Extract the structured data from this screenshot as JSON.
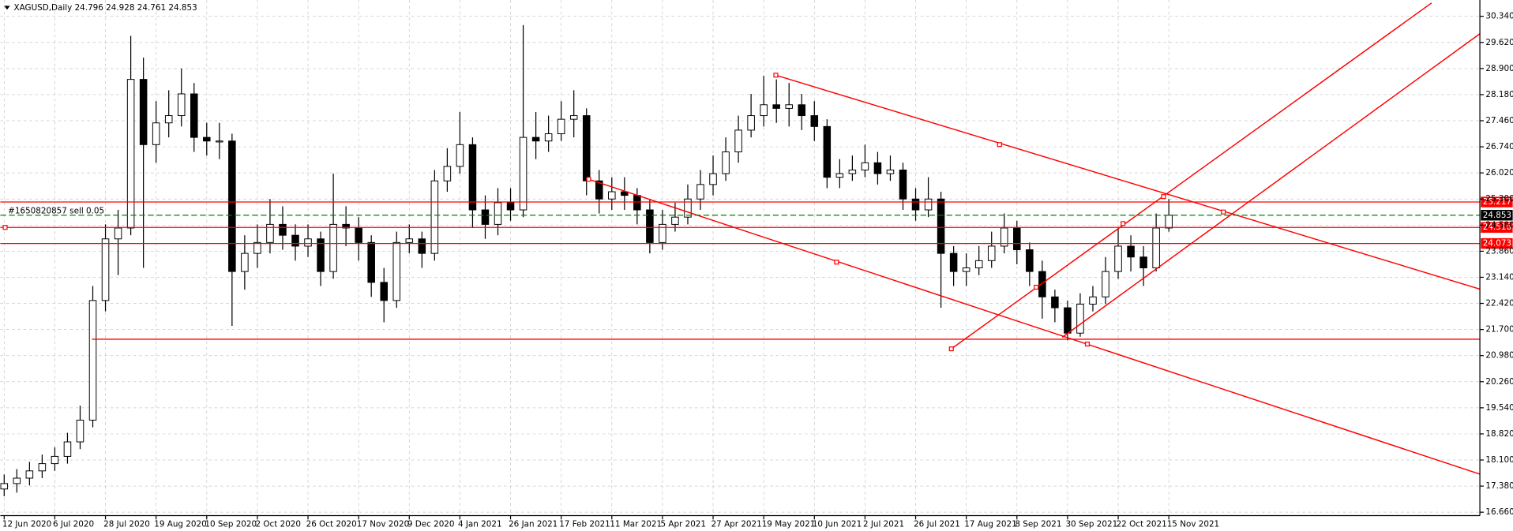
{
  "chart_data": {
    "type": "candlestick",
    "title": "XAGUSD,Daily  24.796 24.928 24.761 24.853",
    "order_label": "#1650820857 sell 0.05",
    "categories": [
      "12 Jun 2020",
      null,
      null,
      null,
      "6 Jul 2020",
      null,
      null,
      null,
      "28 Jul 2020",
      null,
      null,
      null,
      "19 Aug 2020",
      null,
      null,
      null,
      "10 Sep 2020",
      null,
      null,
      null,
      "2 Oct 2020",
      null,
      null,
      null,
      "26 Oct 2020",
      null,
      null,
      null,
      "17 Nov 2020",
      null,
      null,
      null,
      "9 Dec 2020",
      null,
      null,
      null,
      "4 Jan 2021",
      null,
      null,
      null,
      "26 Jan 2021",
      null,
      null,
      null,
      "17 Feb 2021",
      null,
      null,
      null,
      "11 Mar 2021",
      null,
      null,
      null,
      "5 Apr 2021",
      null,
      null,
      null,
      "27 Apr 2021",
      null,
      null,
      null,
      "19 May 2021",
      null,
      null,
      null,
      "10 Jun 2021",
      null,
      null,
      null,
      "2 Jul 2021",
      null,
      null,
      null,
      "26 Jul 2021",
      null,
      null,
      null,
      "17 Aug 2021",
      null,
      null,
      null,
      "8 Sep 2021",
      null,
      null,
      null,
      "30 Sep 2021",
      null,
      null,
      null,
      "22 Oct 2021",
      null,
      null,
      null,
      "15 Nov 2021"
    ],
    "open": [
      17.3,
      17.45,
      17.6,
      17.8,
      18.0,
      18.2,
      18.6,
      19.2,
      22.5,
      24.2,
      24.5,
      28.6,
      26.8,
      27.4,
      27.6,
      28.2,
      27.0,
      26.9,
      26.9,
      23.3,
      23.8,
      24.1,
      24.6,
      24.3,
      24.0,
      24.2,
      23.3,
      24.6,
      24.5,
      24.1,
      23.0,
      22.5,
      24.1,
      24.2,
      23.8,
      25.8,
      26.2,
      26.8,
      25.0,
      24.6,
      25.2,
      25.0,
      27.0,
      26.9,
      27.1,
      27.5,
      27.6,
      25.8,
      25.3,
      25.5,
      25.4,
      25.0,
      24.1,
      24.6,
      24.8,
      25.3,
      25.7,
      26.0,
      26.6,
      27.2,
      27.6,
      27.9,
      27.8,
      27.9,
      27.6,
      27.3,
      25.9,
      26.0,
      26.1,
      26.3,
      26.0,
      26.1,
      25.3,
      25.0,
      25.3,
      23.8,
      23.3,
      23.4,
      23.6,
      24.0,
      24.5,
      23.9,
      23.3,
      22.6,
      22.3,
      21.6,
      22.4,
      22.6,
      23.3,
      24.0,
      23.7,
      23.4,
      24.5
    ],
    "high": [
      17.7,
      17.85,
      18.05,
      18.25,
      18.45,
      18.85,
      19.6,
      22.9,
      24.6,
      25.0,
      29.8,
      29.2,
      28.0,
      28.3,
      28.9,
      28.5,
      27.4,
      27.4,
      27.1,
      24.3,
      24.6,
      25.3,
      25.1,
      24.6,
      24.6,
      24.4,
      26.0,
      25.1,
      24.8,
      24.3,
      23.4,
      24.4,
      24.6,
      24.4,
      26.1,
      26.7,
      27.7,
      27.0,
      25.4,
      25.6,
      25.6,
      30.1,
      27.7,
      27.6,
      28.0,
      28.3,
      27.8,
      26.1,
      25.9,
      25.9,
      25.6,
      25.3,
      25.0,
      25.2,
      25.7,
      26.1,
      26.5,
      27.0,
      27.6,
      28.2,
      28.7,
      28.6,
      28.5,
      28.2,
      28.0,
      27.5,
      26.4,
      26.5,
      26.8,
      26.6,
      26.5,
      26.3,
      25.6,
      25.9,
      25.5,
      24.0,
      23.8,
      24.0,
      24.4,
      24.9,
      24.7,
      24.1,
      23.6,
      22.8,
      22.5,
      22.7,
      22.9,
      23.7,
      24.5,
      24.3,
      24.0,
      24.9,
      25.3
    ],
    "low": [
      17.1,
      17.2,
      17.4,
      17.6,
      17.8,
      18.0,
      18.4,
      19.0,
      22.2,
      23.2,
      24.3,
      23.4,
      26.3,
      27.0,
      27.3,
      26.6,
      26.5,
      26.4,
      21.8,
      22.8,
      23.4,
      23.8,
      23.9,
      23.6,
      23.7,
      22.9,
      23.1,
      24.0,
      23.6,
      22.6,
      21.9,
      22.3,
      23.8,
      23.4,
      23.6,
      25.5,
      26.0,
      24.5,
      24.2,
      24.3,
      24.7,
      24.8,
      26.4,
      26.6,
      26.9,
      27.0,
      25.4,
      24.9,
      25.0,
      25.0,
      24.6,
      23.8,
      23.9,
      24.4,
      24.6,
      25.0,
      25.4,
      25.8,
      26.3,
      27.0,
      27.3,
      27.4,
      27.3,
      27.2,
      26.9,
      25.6,
      25.6,
      25.8,
      25.9,
      25.7,
      25.8,
      25.0,
      24.7,
      24.8,
      22.3,
      22.9,
      22.9,
      23.2,
      23.4,
      23.8,
      23.5,
      22.9,
      22.0,
      21.9,
      21.4,
      21.5,
      22.2,
      22.4,
      23.1,
      23.3,
      22.9,
      23.3,
      24.4
    ],
    "close": [
      17.45,
      17.6,
      17.8,
      18.0,
      18.2,
      18.6,
      19.2,
      22.5,
      24.2,
      24.5,
      28.6,
      26.8,
      27.4,
      27.6,
      28.2,
      27.0,
      26.9,
      26.9,
      23.3,
      23.8,
      24.1,
      24.6,
      24.3,
      24.0,
      24.2,
      23.3,
      24.6,
      24.5,
      24.1,
      23.0,
      22.5,
      24.1,
      24.2,
      23.8,
      25.8,
      26.2,
      26.8,
      25.0,
      24.6,
      25.2,
      25.0,
      27.0,
      26.9,
      27.1,
      27.5,
      27.6,
      25.8,
      25.3,
      25.5,
      25.4,
      25.0,
      24.1,
      24.6,
      24.8,
      25.3,
      25.7,
      26.0,
      26.6,
      27.2,
      27.6,
      27.9,
      27.8,
      27.9,
      27.6,
      27.3,
      25.9,
      26.0,
      26.1,
      26.3,
      26.0,
      26.1,
      25.3,
      25.0,
      25.3,
      23.8,
      23.3,
      23.4,
      23.6,
      24.0,
      24.5,
      23.9,
      23.3,
      22.6,
      22.3,
      21.6,
      22.4,
      22.6,
      23.3,
      24.0,
      23.7,
      23.4,
      24.5,
      24.853
    ],
    "up_color": "#ffffff",
    "down_color": "#000000",
    "ylim": [
      16.62,
      30.79
    ],
    "yticks": [
      {
        "value": 16.66,
        "label": "16.660"
      },
      {
        "value": 17.38,
        "label": "17.380"
      },
      {
        "value": 18.1,
        "label": "18.100"
      },
      {
        "value": 18.82,
        "label": "18.820"
      },
      {
        "value": 19.54,
        "label": "19.540"
      },
      {
        "value": 20.26,
        "label": "20.260"
      },
      {
        "value": 20.98,
        "label": "20.980"
      },
      {
        "value": 21.7,
        "label": "21.700"
      },
      {
        "value": 22.42,
        "label": "22.420"
      },
      {
        "value": 23.14,
        "label": "23.140"
      },
      {
        "value": 23.86,
        "label": "23.860"
      },
      {
        "value": 24.58,
        "label": "24.580"
      },
      {
        "value": 25.3,
        "label": "25.300"
      },
      {
        "value": 26.02,
        "label": "26.020"
      },
      {
        "value": 26.74,
        "label": "26.740"
      },
      {
        "value": 27.46,
        "label": "27.460"
      },
      {
        "value": 28.18,
        "label": "28.180"
      },
      {
        "value": 28.9,
        "label": "28.900"
      },
      {
        "value": 29.62,
        "label": "29.620"
      },
      {
        "value": 30.34,
        "label": "30.340"
      }
    ],
    "grid": true,
    "levels": [
      {
        "value": 25.217,
        "line_color": "#ff0000",
        "box_color": "#ff0000"
      },
      {
        "value": 24.853,
        "line_color": "#008000",
        "box_color": "#000000",
        "dashed": true
      },
      {
        "value": 24.516,
        "line_color": "#ff0000",
        "box_color": "#ff0000"
      },
      {
        "value": 24.073,
        "line_color": "#ff0000",
        "box_color": "#ff0000"
      }
    ]
  }
}
